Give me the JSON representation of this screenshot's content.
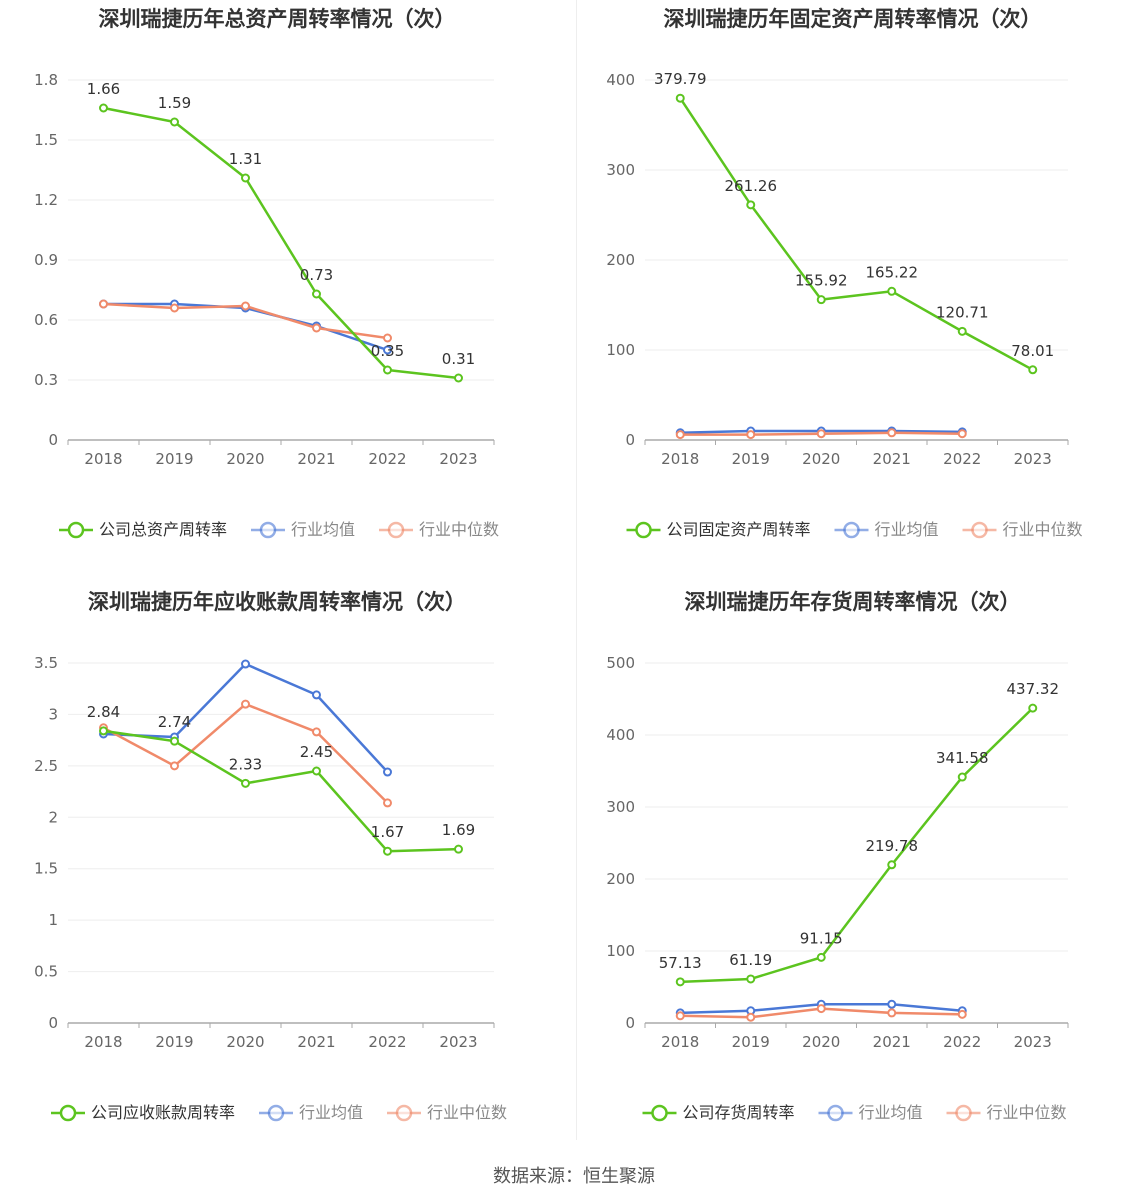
{
  "colors": {
    "company": "#5cc41f",
    "avg": "#4a78d6",
    "median": "#f08a6a",
    "axis": "#aaaaaa",
    "grid": "#eeeeee",
    "text": "#666666",
    "title": "#333333"
  },
  "source_text": "数据来源：恒生聚源",
  "chart_data": [
    {
      "type": "line",
      "title": "深圳瑞捷历年总资产周转率情况（次）",
      "categories": [
        "2018",
        "2019",
        "2020",
        "2021",
        "2022",
        "2023"
      ],
      "ylim": [
        0,
        1.8
      ],
      "yticks": [
        0,
        0.3,
        0.6,
        0.9,
        1.2,
        1.5,
        1.8
      ],
      "ytick_labels": [
        "0",
        "0.3",
        "0.6",
        "0.9",
        "1.2",
        "1.5",
        "1.8"
      ],
      "legend_position": "bottom",
      "series": [
        {
          "name": "公司总资产周转率",
          "role": "company",
          "values": [
            1.66,
            1.59,
            1.31,
            0.73,
            0.35,
            0.31
          ],
          "labels": [
            "1.66",
            "1.59",
            "1.31",
            "0.73",
            "0.35",
            "0.31"
          ]
        },
        {
          "name": "行业均值",
          "role": "avg",
          "values": [
            0.68,
            0.68,
            0.66,
            0.57,
            0.45,
            null
          ]
        },
        {
          "name": "行业中位数",
          "role": "median",
          "values": [
            0.68,
            0.66,
            0.67,
            0.56,
            0.51,
            null
          ]
        }
      ]
    },
    {
      "type": "line",
      "title": "深圳瑞捷历年固定资产周转率情况（次）",
      "categories": [
        "2018",
        "2019",
        "2020",
        "2021",
        "2022",
        "2023"
      ],
      "ylim": [
        0,
        400
      ],
      "yticks": [
        0,
        100,
        200,
        300,
        400
      ],
      "ytick_labels": [
        "0",
        "100",
        "200",
        "300",
        "400"
      ],
      "legend_position": "bottom",
      "series": [
        {
          "name": "公司固定资产周转率",
          "role": "company",
          "values": [
            379.79,
            261.26,
            155.92,
            165.22,
            120.71,
            78.01
          ],
          "labels": [
            "379.79",
            "261.26",
            "155.92",
            "165.22",
            "120.71",
            "78.01"
          ]
        },
        {
          "name": "行业均值",
          "role": "avg",
          "values": [
            8,
            10,
            10,
            10,
            9,
            null
          ]
        },
        {
          "name": "行业中位数",
          "role": "median",
          "values": [
            6,
            6,
            7,
            8,
            7,
            null
          ]
        }
      ]
    },
    {
      "type": "line",
      "title": "深圳瑞捷历年应收账款周转率情况（次）",
      "categories": [
        "2018",
        "2019",
        "2020",
        "2021",
        "2022",
        "2023"
      ],
      "ylim": [
        0,
        3.5
      ],
      "yticks": [
        0,
        0.5,
        1,
        1.5,
        2,
        2.5,
        3,
        3.5
      ],
      "ytick_labels": [
        "0",
        "0.5",
        "1",
        "1.5",
        "2",
        "2.5",
        "3",
        "3.5"
      ],
      "legend_position": "bottom",
      "series": [
        {
          "name": "公司应收账款周转率",
          "role": "company",
          "values": [
            2.84,
            2.74,
            2.33,
            2.45,
            1.67,
            1.69
          ],
          "labels": [
            "2.84",
            "2.74",
            "2.33",
            "2.45",
            "1.67",
            "1.69"
          ]
        },
        {
          "name": "行业均值",
          "role": "avg",
          "values": [
            2.81,
            2.78,
            3.49,
            3.19,
            2.44,
            null
          ]
        },
        {
          "name": "行业中位数",
          "role": "median",
          "values": [
            2.87,
            2.5,
            3.1,
            2.83,
            2.14,
            null
          ]
        }
      ]
    },
    {
      "type": "line",
      "title": "深圳瑞捷历年存货周转率情况（次）",
      "categories": [
        "2018",
        "2019",
        "2020",
        "2021",
        "2022",
        "2023"
      ],
      "ylim": [
        0,
        500
      ],
      "yticks": [
        0,
        100,
        200,
        300,
        400,
        500
      ],
      "ytick_labels": [
        "0",
        "100",
        "200",
        "300",
        "400",
        "500"
      ],
      "legend_position": "bottom",
      "series": [
        {
          "name": "公司存货周转率",
          "role": "company",
          "values": [
            57.13,
            61.19,
            91.15,
            219.78,
            341.58,
            437.32
          ],
          "labels": [
            "57.13",
            "61.19",
            "91.15",
            "219.78",
            "341.58",
            "437.32"
          ]
        },
        {
          "name": "行业均值",
          "role": "avg",
          "values": [
            14,
            17,
            26,
            26,
            17,
            null
          ]
        },
        {
          "name": "行业中位数",
          "role": "median",
          "values": [
            10,
            8,
            20,
            14,
            12,
            null
          ]
        }
      ]
    }
  ]
}
